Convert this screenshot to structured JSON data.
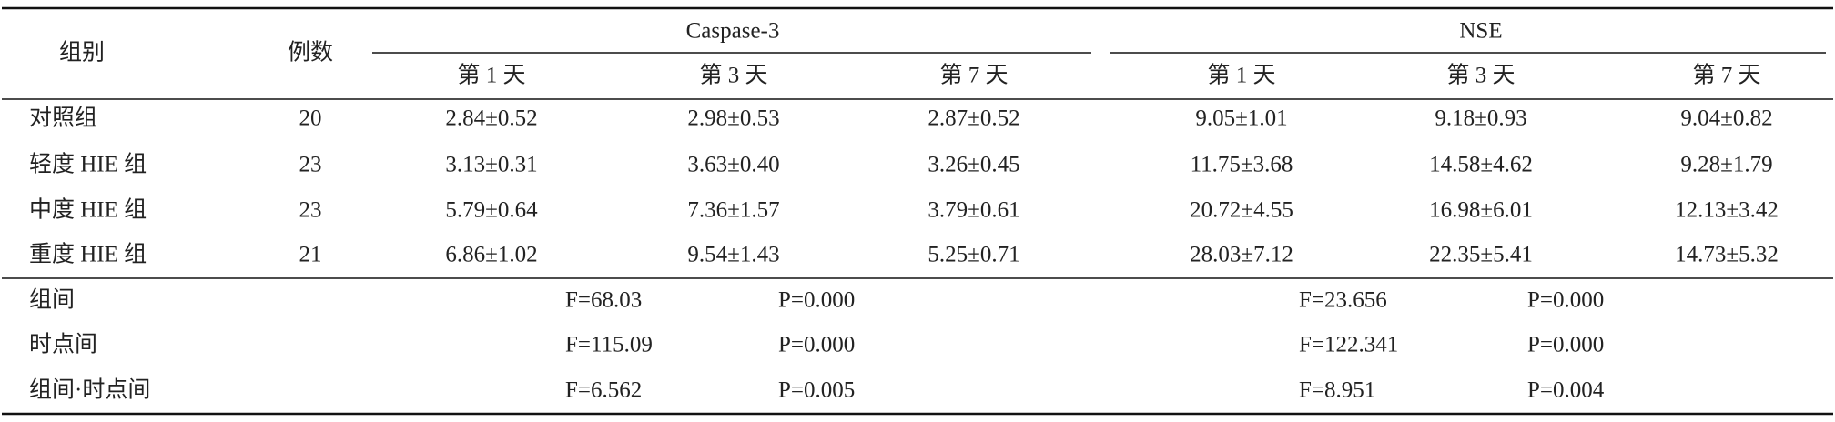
{
  "table": {
    "header": {
      "group": "组别",
      "count": "例数",
      "caspase": "Caspase-3",
      "nse": "NSE",
      "caspase_days": [
        "第 1 天",
        "第 3 天",
        "第 7 天"
      ],
      "nse_days": [
        "第 1 天",
        "第 3 天",
        "第 7 天"
      ]
    },
    "rows": [
      {
        "label": "对照组",
        "count": 20,
        "values": [
          "2.84±0.52",
          "2.98±0.53",
          "2.87±0.52",
          "9.05±1.01",
          "9.18±0.93",
          "9.04±0.82"
        ]
      },
      {
        "label": "轻度 HIE 组",
        "count": 23,
        "values": [
          "3.13±0.31",
          "3.63±0.40",
          "3.26±0.45",
          "11.75±3.68",
          "14.58±4.62",
          "9.28±1.79"
        ]
      },
      {
        "label": "中度 HIE 组",
        "count": 23,
        "values": [
          "5.79±0.64",
          "7.36±1.57",
          "3.79±0.61",
          "20.72±4.55",
          "16.98±6.01",
          "12.13±3.42"
        ]
      },
      {
        "label": "重度 HIE 组",
        "count": 21,
        "values": [
          "6.86±1.02",
          "9.54±1.43",
          "5.25±0.71",
          "28.03±7.12",
          "22.35±5.41",
          "14.73±5.32"
        ]
      }
    ],
    "stats": [
      {
        "label": "组间",
        "caspase_f": "F=68.03",
        "caspase_p": "P=0.000",
        "nse_f": "F=23.656",
        "nse_p": "P=0.000"
      },
      {
        "label": "时点间",
        "caspase_f": "F=115.09",
        "caspase_p": "P=0.000",
        "nse_f": "F=122.341",
        "nse_p": "P=0.000"
      },
      {
        "label": "组间·时点间",
        "caspase_f": "F=6.562",
        "caspase_p": "P=0.005",
        "nse_f": "F=8.951",
        "nse_p": "P=0.004"
      }
    ]
  }
}
